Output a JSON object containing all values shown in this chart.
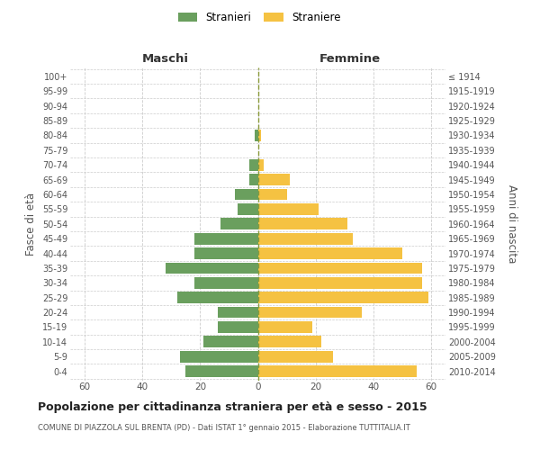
{
  "age_groups": [
    "0-4",
    "5-9",
    "10-14",
    "15-19",
    "20-24",
    "25-29",
    "30-34",
    "35-39",
    "40-44",
    "45-49",
    "50-54",
    "55-59",
    "60-64",
    "65-69",
    "70-74",
    "75-79",
    "80-84",
    "85-89",
    "90-94",
    "95-99",
    "100+"
  ],
  "birth_years": [
    "2010-2014",
    "2005-2009",
    "2000-2004",
    "1995-1999",
    "1990-1994",
    "1985-1989",
    "1980-1984",
    "1975-1979",
    "1970-1974",
    "1965-1969",
    "1960-1964",
    "1955-1959",
    "1950-1954",
    "1945-1949",
    "1940-1944",
    "1935-1939",
    "1930-1934",
    "1925-1929",
    "1920-1924",
    "1915-1919",
    "≤ 1914"
  ],
  "maschi": [
    25,
    27,
    19,
    14,
    14,
    28,
    22,
    32,
    22,
    22,
    13,
    7,
    8,
    3,
    3,
    0,
    1,
    0,
    0,
    0,
    0
  ],
  "femmine": [
    55,
    26,
    22,
    19,
    36,
    59,
    57,
    57,
    50,
    33,
    31,
    21,
    10,
    11,
    2,
    0,
    1,
    0,
    0,
    0,
    0
  ],
  "male_color": "#6a9f5e",
  "female_color": "#f5c242",
  "background_color": "#ffffff",
  "grid_color": "#cccccc",
  "title": "Popolazione per cittadinanza straniera per età e sesso - 2015",
  "subtitle": "COMUNE DI PIAZZOLA SUL BRENTA (PD) - Dati ISTAT 1° gennaio 2015 - Elaborazione TUTTITALIA.IT",
  "xlabel_left": "Maschi",
  "xlabel_right": "Femmine",
  "ylabel_left": "Fasce di età",
  "ylabel_right": "Anni di nascita",
  "legend_male": "Stranieri",
  "legend_female": "Straniere",
  "xlim": 65,
  "bar_height": 0.78
}
